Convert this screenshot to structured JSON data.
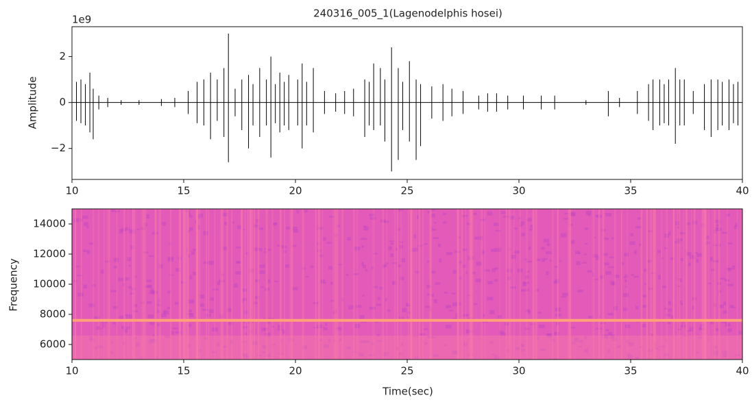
{
  "chart_data": [
    {
      "type": "waveform",
      "title": "240316_005_1(Lagenodelphis hosei)",
      "y_label": "Amplitude",
      "offset_label": "1e9",
      "color": "#000000",
      "xlim": [
        10,
        40
      ],
      "xticks": [
        10,
        15,
        20,
        25,
        30,
        35,
        40
      ],
      "ylim": [
        -3.35,
        3.3
      ],
      "yticks": [
        {
          "value": -2,
          "label": "−2"
        },
        0,
        2
      ],
      "x": [
        10.2,
        10.4,
        10.6,
        10.8,
        10.95,
        11.2,
        11.6,
        12.2,
        13.0,
        14.0,
        14.6,
        15.2,
        15.6,
        15.9,
        16.2,
        16.5,
        16.8,
        17.0,
        17.3,
        17.6,
        17.9,
        18.1,
        18.4,
        18.7,
        18.9,
        19.1,
        19.3,
        19.5,
        19.7,
        20.1,
        20.3,
        20.5,
        20.8,
        21.3,
        21.8,
        22.2,
        22.6,
        23.1,
        23.3,
        23.5,
        23.8,
        24.0,
        24.3,
        24.6,
        24.8,
        25.1,
        25.4,
        25.6,
        26.1,
        26.6,
        27.0,
        27.5,
        28.2,
        28.6,
        29.0,
        29.5,
        30.2,
        31.0,
        31.6,
        33.0,
        34.0,
        34.5,
        35.3,
        35.8,
        36.0,
        36.3,
        36.5,
        36.7,
        37.0,
        37.2,
        37.4,
        37.8,
        38.3,
        38.6,
        38.9,
        39.1,
        39.4,
        39.6,
        39.8
      ],
      "max": [
        0.9,
        1.0,
        0.8,
        1.3,
        0.6,
        0.3,
        0.2,
        0.1,
        0.1,
        0.15,
        0.2,
        0.5,
        0.9,
        1.0,
        1.3,
        1.0,
        1.5,
        3.0,
        0.6,
        1.0,
        1.2,
        0.8,
        1.5,
        1.0,
        2.0,
        0.8,
        1.3,
        0.9,
        1.2,
        1.0,
        1.7,
        0.9,
        1.5,
        0.5,
        0.4,
        0.5,
        0.6,
        1.0,
        0.9,
        1.7,
        1.5,
        1.0,
        2.4,
        1.5,
        0.9,
        1.8,
        1.0,
        0.8,
        0.7,
        0.8,
        0.6,
        0.5,
        0.3,
        0.4,
        0.4,
        0.3,
        0.3,
        0.3,
        0.3,
        0.1,
        0.5,
        0.2,
        0.5,
        0.8,
        1.0,
        1.0,
        0.8,
        1.0,
        1.5,
        1.0,
        1.0,
        0.5,
        0.8,
        1.0,
        1.0,
        0.9,
        1.0,
        0.8,
        0.9
      ],
      "min": [
        -0.8,
        -0.9,
        -1.0,
        -1.3,
        -1.6,
        -0.3,
        -0.2,
        -0.1,
        -0.1,
        -0.15,
        -0.2,
        -0.5,
        -0.9,
        -1.0,
        -1.6,
        -0.8,
        -1.5,
        -2.6,
        -0.6,
        -1.2,
        -2.0,
        -1.0,
        -1.5,
        -1.0,
        -2.4,
        -0.9,
        -1.3,
        -1.0,
        -1.2,
        -1.0,
        -2.0,
        -1.0,
        -1.3,
        -0.5,
        -0.4,
        -0.5,
        -0.6,
        -1.5,
        -1.0,
        -1.2,
        -1.0,
        -1.7,
        -3.0,
        -2.5,
        -1.2,
        -1.7,
        -2.5,
        -1.9,
        -0.7,
        -0.8,
        -0.6,
        -0.5,
        -0.3,
        -0.4,
        -0.4,
        -0.3,
        -0.3,
        -0.3,
        -0.3,
        -0.1,
        -0.6,
        -0.2,
        -0.5,
        -0.8,
        -1.2,
        -1.0,
        -0.9,
        -1.0,
        -1.8,
        -1.0,
        -1.0,
        -0.5,
        -1.2,
        -1.5,
        -1.2,
        -1.0,
        -1.2,
        -0.9,
        -1.0
      ]
    },
    {
      "type": "spectrogram",
      "x_label": "Time(sec)",
      "y_label": "Frequency",
      "xlim": [
        10,
        40
      ],
      "xticks": [
        10,
        15,
        20,
        25,
        30,
        35,
        40
      ],
      "ylim": [
        5000,
        15000
      ],
      "yticks": [
        6000,
        8000,
        10000,
        12000,
        14000
      ],
      "colormap": [
        "#c248c4",
        "#e35ab8",
        "#f77aa8",
        "#ffa27a"
      ],
      "tone_hz": 7600
    }
  ]
}
